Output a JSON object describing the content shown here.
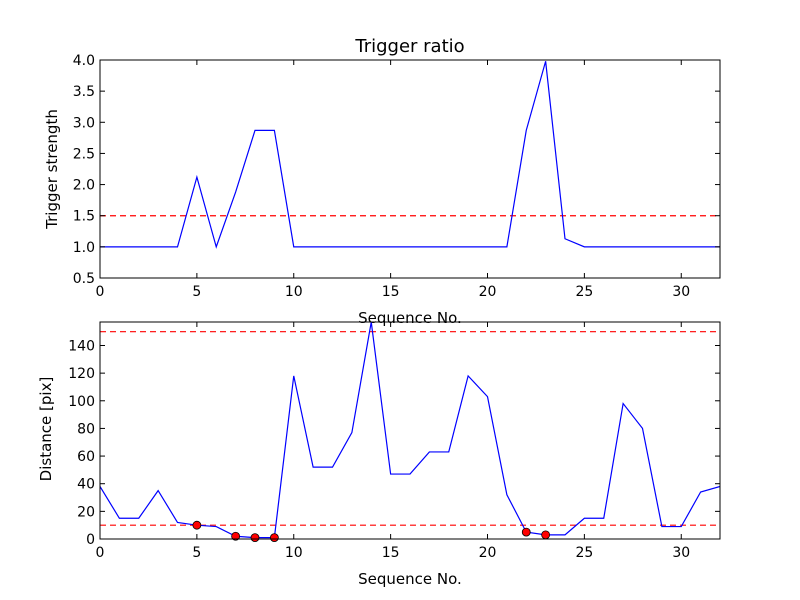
{
  "chart_data": [
    {
      "type": "line",
      "title": "Trigger ratio",
      "xlabel": "Sequence No.",
      "ylabel": "Trigger strength",
      "xlim": [
        0,
        32
      ],
      "ylim": [
        0.5,
        4.0
      ],
      "xticks": [
        0,
        5,
        10,
        15,
        20,
        25,
        30
      ],
      "yticks": [
        0.5,
        1.0,
        1.5,
        2.0,
        2.5,
        3.0,
        3.5,
        4.0
      ],
      "xtick_labels": [
        "0",
        "5",
        "10",
        "15",
        "20",
        "25",
        "30"
      ],
      "ytick_labels": [
        "0.5",
        "1.0",
        "1.5",
        "2.0",
        "2.5",
        "3.0",
        "3.5",
        "4.0"
      ],
      "grid": false,
      "series": [
        {
          "color": "#0000ff",
          "x": [
            0,
            1,
            2,
            3,
            4,
            5,
            6,
            7,
            8,
            9,
            10,
            11,
            12,
            13,
            14,
            15,
            16,
            17,
            18,
            19,
            20,
            21,
            22,
            23,
            24,
            25,
            26,
            27,
            28,
            29,
            30,
            31,
            32
          ],
          "y": [
            1.0,
            1.0,
            1.0,
            1.0,
            1.0,
            2.12,
            1.0,
            1.88,
            2.87,
            2.87,
            1.0,
            1.0,
            1.0,
            1.0,
            1.0,
            1.0,
            1.0,
            1.0,
            1.0,
            1.0,
            1.0,
            1.0,
            2.87,
            3.98,
            1.13,
            1.0,
            1.0,
            1.0,
            1.0,
            1.0,
            1.0,
            1.0,
            1.0
          ]
        }
      ],
      "hlines": [
        {
          "y": 1.5,
          "color": "#ff0000",
          "style": "dashed"
        }
      ]
    },
    {
      "type": "line",
      "xlabel": "Sequence No.",
      "ylabel": "Distance [pix]",
      "xlim": [
        0,
        32
      ],
      "ylim": [
        0,
        157
      ],
      "xticks": [
        0,
        5,
        10,
        15,
        20,
        25,
        30
      ],
      "yticks": [
        0,
        20,
        40,
        60,
        80,
        100,
        120,
        140
      ],
      "xtick_labels": [
        "0",
        "5",
        "10",
        "15",
        "20",
        "25",
        "30"
      ],
      "ytick_labels": [
        "0",
        "20",
        "40",
        "60",
        "80",
        "100",
        "120",
        "140"
      ],
      "grid": false,
      "series": [
        {
          "color": "#0000ff",
          "x": [
            0,
            1,
            2,
            3,
            4,
            5,
            6,
            7,
            8,
            9,
            10,
            11,
            12,
            13,
            14,
            15,
            16,
            17,
            18,
            19,
            20,
            21,
            22,
            23,
            24,
            25,
            26,
            27,
            28,
            29,
            30,
            31,
            32
          ],
          "y": [
            38,
            15,
            15,
            35,
            12,
            10,
            9,
            2,
            1,
            1,
            118,
            52,
            52,
            77,
            157,
            47,
            47,
            63,
            63,
            118,
            103,
            32,
            5,
            3,
            3,
            15,
            15,
            98,
            80,
            9,
            9,
            34,
            38
          ]
        }
      ],
      "markers": {
        "color": "#ff0000",
        "x": [
          5,
          7,
          8,
          9,
          22,
          23
        ],
        "y": [
          10,
          2,
          1,
          1,
          5,
          3
        ]
      },
      "hlines": [
        {
          "y": 150,
          "color": "#ff0000",
          "style": "dashed"
        },
        {
          "y": 10,
          "color": "#ff0000",
          "style": "dashed"
        }
      ]
    }
  ]
}
